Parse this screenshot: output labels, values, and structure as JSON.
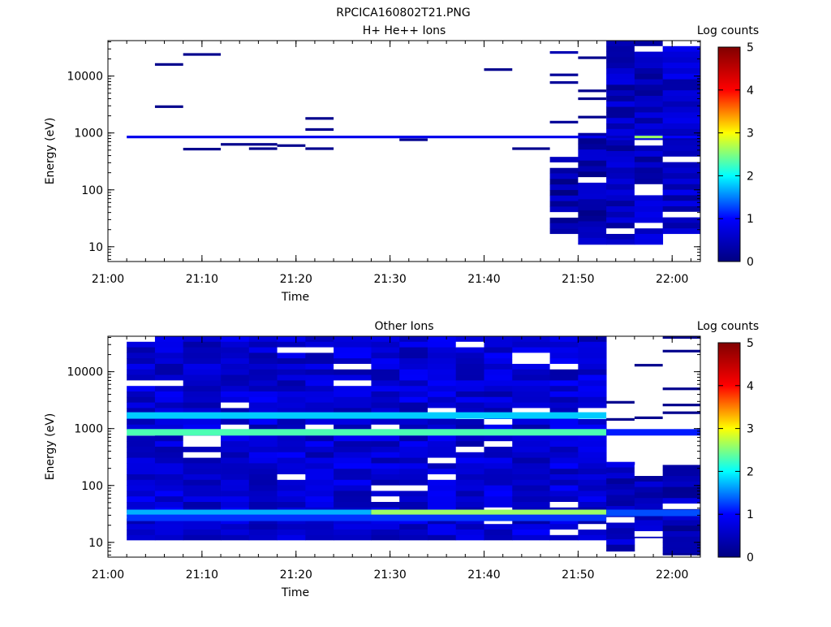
{
  "page": {
    "title": "RPCICA160802T21.PNG"
  },
  "colorbar": {
    "colors": [
      "#000080",
      "#0000ff",
      "#00ffff",
      "#ffff00",
      "#ff0000",
      "#800000"
    ],
    "tick_labels": [
      "0",
      "1",
      "2",
      "3",
      "4",
      "5"
    ]
  },
  "chart_data": [
    {
      "type": "heatmap",
      "title": "H+ He++ Ions",
      "xlabel": "Time",
      "ylabel": "Energy (eV)",
      "colorbar_label": "Log counts",
      "yscale": "log",
      "ylim": [
        5.5,
        42000
      ],
      "x_tick_labels": [
        "21:00",
        "21:10",
        "21:20",
        "21:30",
        "21:40",
        "21:50",
        "22:00"
      ],
      "x_range": [
        "21:00",
        "22:03"
      ],
      "y_tick_labels": [
        "10",
        "100",
        "1000",
        "10000"
      ],
      "clim": [
        0,
        5
      ],
      "time_bins": [
        "21:02",
        "21:05",
        "21:08",
        "21:12",
        "21:15",
        "21:18",
        "21:21",
        "21:24",
        "21:28",
        "21:31",
        "21:34",
        "21:37",
        "21:40",
        "21:43",
        "21:47",
        "21:50",
        "21:53",
        "21:56",
        "21:59",
        "22:03"
      ],
      "cells": [
        {
          "t0": 0,
          "t1": 16,
          "e": 850,
          "v": 0.85
        },
        {
          "t0": 16,
          "t1": 17,
          "e": 850,
          "v": 0.5
        },
        {
          "t0": 17,
          "t1": 18,
          "e": 850,
          "v": 2.6
        },
        {
          "t0": 18,
          "t1": 19,
          "e": 850,
          "v": 1.0
        },
        {
          "t0": 1,
          "t1": 2,
          "e": 16000,
          "v": 0.1
        },
        {
          "t0": 1,
          "t1": 2,
          "e": 2900,
          "v": 0.1
        },
        {
          "t0": 2,
          "t1": 3,
          "e": 24000,
          "v": 0.1
        },
        {
          "t0": 2,
          "t1": 3,
          "e": 520,
          "v": 0.1
        },
        {
          "t0": 3,
          "t1": 5,
          "e": 630,
          "v": 0.1
        },
        {
          "t0": 4,
          "t1": 5,
          "e": 530,
          "v": 0.1
        },
        {
          "t0": 5,
          "t1": 6,
          "e": 600,
          "v": 0.1
        },
        {
          "t0": 6,
          "t1": 7,
          "e": 1800,
          "v": 0.1
        },
        {
          "t0": 6,
          "t1": 7,
          "e": 1150,
          "v": 0.1
        },
        {
          "t0": 6,
          "t1": 7,
          "e": 530,
          "v": 0.1
        },
        {
          "t0": 9,
          "t1": 10,
          "e": 760,
          "v": 0.1
        },
        {
          "t0": 12,
          "t1": 13,
          "e": 13000,
          "v": 0.1
        },
        {
          "t0": 13,
          "t1": 14,
          "e": 530,
          "v": 0.1
        },
        {
          "t0": 14,
          "t1": 15,
          "e": 26000,
          "v": 0.4
        },
        {
          "t0": 14,
          "t1": 15,
          "e": 10500,
          "v": 0.2
        },
        {
          "t0": 14,
          "t1": 15,
          "e": 7700,
          "v": 0.2
        },
        {
          "t0": 14,
          "t1": 15,
          "e": 1550,
          "v": 0.2
        },
        {
          "t0": 15,
          "t1": 16,
          "e": 21000,
          "v": 0.1
        },
        {
          "t0": 15,
          "t1": 16,
          "e": 5500,
          "v": 0.1
        },
        {
          "t0": 15,
          "t1": 16,
          "e": 4000,
          "v": 0.1
        },
        {
          "t0": 15,
          "t1": 16,
          "e": 1900,
          "v": 0.1
        }
      ],
      "blocks": [
        {
          "t0": 14,
          "t1": 15,
          "e0": 17,
          "e1": 380,
          "v": 0.3
        },
        {
          "t0": 15,
          "t1": 16,
          "e0": 11,
          "e1": 1000,
          "v": 0.3
        },
        {
          "t0": 16,
          "t1": 17,
          "e0": 11,
          "e1": 42000,
          "v": 0.4
        },
        {
          "t0": 17,
          "t1": 18,
          "e0": 11,
          "e1": 42000,
          "v": 0.45
        },
        {
          "t0": 18,
          "t1": 19,
          "e0": 17,
          "e1": 42000,
          "v": 0.5
        }
      ]
    },
    {
      "type": "heatmap",
      "title": "Other Ions",
      "xlabel": "Time",
      "ylabel": "Energy (eV)",
      "colorbar_label": "Log counts",
      "yscale": "log",
      "ylim": [
        5.5,
        42000
      ],
      "x_tick_labels": [
        "21:00",
        "21:10",
        "21:20",
        "21:30",
        "21:40",
        "21:50",
        "22:00"
      ],
      "x_range": [
        "21:00",
        "22:03"
      ],
      "y_tick_labels": [
        "10",
        "100",
        "1000",
        "10000"
      ],
      "clim": [
        0,
        5
      ],
      "time_bins": [
        "21:02",
        "21:05",
        "21:08",
        "21:12",
        "21:15",
        "21:18",
        "21:21",
        "21:24",
        "21:28",
        "21:31",
        "21:34",
        "21:37",
        "21:40",
        "21:43",
        "21:47",
        "21:50",
        "21:53",
        "21:56",
        "21:59",
        "22:03"
      ],
      "blocks": [
        {
          "t0": 0,
          "t1": 16,
          "e0": 11,
          "e1": 42000,
          "v": 0.6
        },
        {
          "t0": 16,
          "t1": 17,
          "e0": 7,
          "e1": 260,
          "v": 0.45
        },
        {
          "t0": 17,
          "t1": 18,
          "e0": 12,
          "e1": 230,
          "v": 0.4
        },
        {
          "t0": 18,
          "t1": 19,
          "e0": 6,
          "e1": 230,
          "v": 0.4
        }
      ],
      "bands": [
        {
          "t0": 0,
          "t1": 16,
          "e": 1700,
          "v": 1.8
        },
        {
          "t0": 0,
          "t1": 16,
          "e": 860,
          "v": 2.3
        },
        {
          "t0": 0,
          "t1": 8,
          "e": 33,
          "v": 1.7
        },
        {
          "t0": 8,
          "t1": 16,
          "e": 33,
          "v": 2.6
        },
        {
          "t0": 16,
          "t1": 19,
          "e": 33,
          "v": 1.3
        },
        {
          "t0": 16,
          "t1": 19,
          "e": 860,
          "v": 1.1
        },
        {
          "t0": 0,
          "t1": 16,
          "e": 27,
          "v": 1.2
        }
      ],
      "cells": [
        {
          "t0": 16,
          "t1": 17,
          "e": 2900,
          "v": 0.1
        },
        {
          "t0": 16,
          "t1": 17,
          "e": 1450,
          "v": 0.1
        },
        {
          "t0": 17,
          "t1": 18,
          "e": 13000,
          "v": 0.1
        },
        {
          "t0": 17,
          "t1": 18,
          "e": 1550,
          "v": 0.1
        },
        {
          "t0": 18,
          "t1": 19,
          "e": 40000,
          "v": 0.1
        },
        {
          "t0": 18,
          "t1": 19,
          "e": 23000,
          "v": 0.1
        },
        {
          "t0": 18,
          "t1": 19,
          "e": 5000,
          "v": 0.1
        },
        {
          "t0": 18,
          "t1": 19,
          "e": 2600,
          "v": 0.1
        },
        {
          "t0": 18,
          "t1": 19,
          "e": 1900,
          "v": 0.1
        }
      ]
    }
  ]
}
